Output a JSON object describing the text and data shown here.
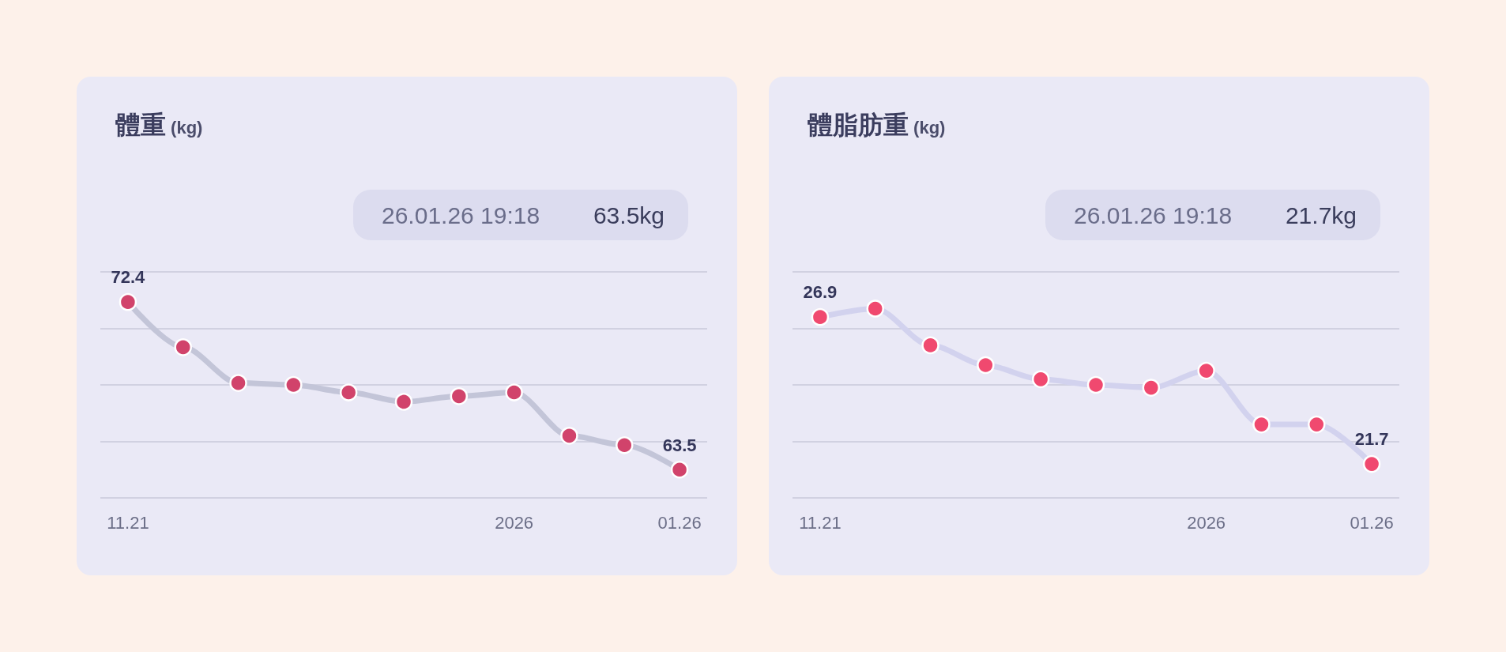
{
  "chart_data": [
    {
      "type": "line",
      "title": "體重",
      "ylabel": "(kg)",
      "annotations": [
        "26.01.26 19:18",
        "63.5kg"
      ],
      "categories": [
        "11.21",
        null,
        null,
        null,
        null,
        null,
        null,
        "2026",
        null,
        null,
        "01.26"
      ],
      "series": [
        {
          "color": "#c3c5d8",
          "colors": [
            "#d1436b",
            "#d1436b",
            "#d1436b",
            "#d1436b",
            "#d1436b",
            "#d1436b",
            "#d1436b",
            "#d1436b",
            "#d1436b",
            "#d1436b",
            "#d1436b"
          ],
          "values": [
            72.4,
            70.0,
            68.1,
            68.0,
            67.6,
            67.1,
            67.4,
            67.6,
            65.3,
            64.8,
            63.5
          ],
          "value_labels": [
            "72.4",
            null,
            null,
            null,
            null,
            null,
            null,
            null,
            null,
            null,
            "63.5"
          ]
        }
      ],
      "ylim": [
        62,
        74
      ],
      "yticks": [
        {
          "value": 62,
          "label": null
        },
        {
          "value": 65,
          "label": null
        },
        {
          "value": 68,
          "label": null
        },
        {
          "value": 71,
          "label": null
        },
        {
          "value": 74,
          "label": null
        }
      ],
      "grid": "y",
      "marker": "circle",
      "line_style": "solid",
      "tick_labels": "x"
    },
    {
      "type": "line",
      "title": "體脂肪重",
      "ylabel": "(kg)",
      "annotations": [
        "26.01.26 19:18",
        "21.7kg"
      ],
      "categories": [
        "11.21",
        null,
        null,
        null,
        null,
        null,
        null,
        "2026",
        null,
        null,
        "01.26"
      ],
      "series": [
        {
          "color": "#d2d2ee",
          "colors": [
            "#f0496f",
            "#f0496f",
            "#f0496f",
            "#f0496f",
            "#f0496f",
            "#f0496f",
            "#f0496f",
            "#f0496f",
            "#f0496f",
            "#f0496f",
            "#f0496f"
          ],
          "values": [
            26.9,
            27.2,
            25.9,
            25.2,
            24.7,
            24.5,
            24.4,
            25.0,
            23.1,
            23.1,
            21.7
          ],
          "value_labels": [
            "26.9",
            null,
            null,
            null,
            null,
            null,
            null,
            null,
            null,
            null,
            "21.7"
          ]
        }
      ],
      "ylim": [
        20.5,
        28.5
      ],
      "yticks": [
        {
          "value": 20.5,
          "label": null
        },
        {
          "value": 22.5,
          "label": null
        },
        {
          "value": 24.5,
          "label": null
        },
        {
          "value": 26.5,
          "label": null
        },
        {
          "value": 28.5,
          "label": null
        }
      ],
      "grid": "y",
      "marker": "circle",
      "line_style": "solid",
      "tick_labels": "x"
    }
  ]
}
